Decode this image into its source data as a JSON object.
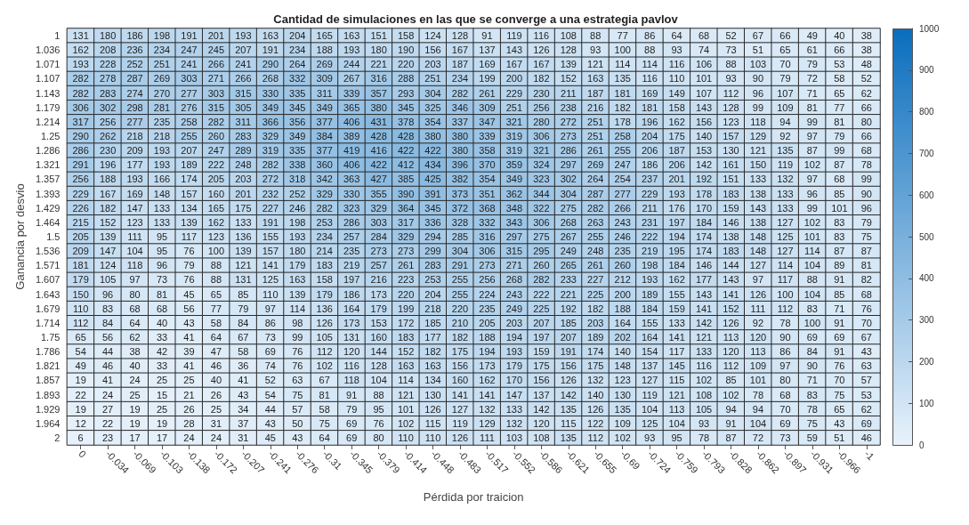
{
  "chart_data": {
    "type": "heatmap",
    "title": "Cantidad de simulaciones en las que se converge a una estrategia pavlov",
    "xlabel": "Pérdida por traicion",
    "ylabel": "Ganancia por desvio",
    "categories": [
      "0",
      "-0.034",
      "-0.069",
      "-0.103",
      "-0.138",
      "-0.172",
      "-0.207",
      "-0.241",
      "-0.276",
      "-0.31",
      "-0.345",
      "-0.379",
      "-0.414",
      "-0.448",
      "-0.483",
      "-0.517",
      "-0.552",
      "-0.586",
      "-0.621",
      "-0.655",
      "-0.69",
      "-0.724",
      "-0.759",
      "-0.793",
      "-0.828",
      "-0.862",
      "-0.897",
      "-0.931",
      "-0.966",
      "-1"
    ],
    "y_categories": [
      "1",
      "1.036",
      "1.071",
      "1.107",
      "1.143",
      "1.179",
      "1.214",
      "1.25",
      "1.286",
      "1.321",
      "1.357",
      "1.393",
      "1.429",
      "1.464",
      "1.5",
      "1.536",
      "1.571",
      "1.607",
      "1.643",
      "1.679",
      "1.714",
      "1.75",
      "1.786",
      "1.821",
      "1.857",
      "1.893",
      "1.929",
      "1.964",
      "2"
    ],
    "cells": [
      [
        131,
        180,
        186,
        198,
        191,
        201,
        193,
        163,
        204,
        165,
        163,
        151,
        158,
        124,
        128,
        91,
        119,
        116,
        108,
        88,
        77,
        86,
        64,
        68,
        52,
        67,
        66,
        49,
        40,
        38
      ],
      [
        162,
        208,
        236,
        234,
        247,
        245,
        207,
        191,
        234,
        188,
        193,
        180,
        190,
        156,
        167,
        137,
        143,
        126,
        128,
        93,
        100,
        88,
        93,
        74,
        73,
        51,
        65,
        61,
        66,
        38
      ],
      [
        193,
        228,
        252,
        251,
        241,
        266,
        241,
        290,
        264,
        269,
        244,
        221,
        220,
        203,
        187,
        169,
        167,
        167,
        139,
        121,
        114,
        114,
        116,
        106,
        88,
        103,
        70,
        79,
        53,
        48
      ],
      [
        282,
        278,
        287,
        269,
        303,
        271,
        266,
        268,
        332,
        309,
        267,
        316,
        288,
        251,
        234,
        199,
        200,
        182,
        152,
        163,
        135,
        116,
        110,
        101,
        93,
        90,
        79,
        72,
        58,
        52
      ],
      [
        282,
        283,
        274,
        270,
        277,
        303,
        315,
        330,
        335,
        311,
        339,
        357,
        293,
        304,
        282,
        261,
        229,
        230,
        211,
        187,
        181,
        169,
        149,
        107,
        112,
        96,
        107,
        71,
        65,
        62
      ],
      [
        306,
        302,
        298,
        281,
        276,
        315,
        305,
        349,
        345,
        349,
        365,
        380,
        345,
        325,
        346,
        309,
        251,
        256,
        238,
        216,
        182,
        181,
        158,
        143,
        128,
        99,
        109,
        81,
        77,
        66
      ],
      [
        317,
        256,
        277,
        235,
        258,
        282,
        311,
        366,
        356,
        377,
        406,
        431,
        378,
        354,
        337,
        347,
        321,
        280,
        272,
        251,
        178,
        196,
        162,
        156,
        123,
        118,
        94,
        99,
        81,
        80
      ],
      [
        290,
        262,
        218,
        218,
        255,
        260,
        283,
        329,
        349,
        384,
        389,
        428,
        428,
        380,
        380,
        339,
        319,
        306,
        273,
        251,
        258,
        204,
        175,
        140,
        157,
        129,
        92,
        97,
        79,
        66
      ],
      [
        286,
        230,
        209,
        193,
        207,
        247,
        289,
        319,
        335,
        377,
        419,
        416,
        422,
        422,
        380,
        358,
        319,
        321,
        286,
        261,
        255,
        206,
        187,
        153,
        130,
        121,
        135,
        87,
        99,
        68
      ],
      [
        291,
        196,
        177,
        193,
        189,
        222,
        248,
        282,
        338,
        360,
        406,
        422,
        412,
        434,
        396,
        370,
        359,
        324,
        297,
        269,
        247,
        186,
        206,
        142,
        161,
        150,
        119,
        102,
        87,
        78
      ],
      [
        256,
        188,
        193,
        166,
        174,
        205,
        203,
        272,
        318,
        342,
        363,
        427,
        385,
        425,
        382,
        354,
        349,
        323,
        302,
        264,
        254,
        237,
        201,
        192,
        151,
        133,
        132,
        97,
        68,
        99
      ],
      [
        229,
        167,
        169,
        148,
        157,
        160,
        201,
        232,
        252,
        329,
        330,
        355,
        390,
        391,
        373,
        351,
        362,
        344,
        304,
        287,
        277,
        229,
        193,
        178,
        183,
        138,
        133,
        96,
        85,
        90
      ],
      [
        226,
        182,
        147,
        133,
        134,
        165,
        175,
        227,
        246,
        282,
        323,
        329,
        364,
        345,
        372,
        368,
        348,
        322,
        275,
        282,
        266,
        211,
        176,
        170,
        159,
        143,
        133,
        99,
        101,
        96
      ],
      [
        215,
        152,
        123,
        133,
        139,
        162,
        133,
        191,
        198,
        253,
        286,
        303,
        317,
        336,
        328,
        332,
        343,
        306,
        268,
        263,
        243,
        231,
        197,
        184,
        146,
        138,
        127,
        102,
        83,
        79
      ],
      [
        205,
        139,
        111,
        95,
        117,
        123,
        136,
        155,
        193,
        234,
        257,
        284,
        329,
        294,
        285,
        316,
        297,
        275,
        267,
        255,
        246,
        222,
        194,
        174,
        138,
        148,
        125,
        101,
        83,
        75
      ],
      [
        209,
        147,
        104,
        95,
        76,
        100,
        139,
        157,
        180,
        214,
        235,
        273,
        273,
        299,
        304,
        306,
        315,
        295,
        249,
        248,
        235,
        219,
        195,
        174,
        183,
        148,
        127,
        114,
        87,
        87
      ],
      [
        181,
        124,
        118,
        96,
        79,
        88,
        121,
        141,
        179,
        183,
        219,
        257,
        261,
        283,
        291,
        273,
        271,
        260,
        265,
        261,
        260,
        198,
        184,
        146,
        144,
        127,
        114,
        104,
        89,
        81
      ],
      [
        179,
        105,
        97,
        73,
        76,
        88,
        131,
        125,
        163,
        158,
        197,
        216,
        223,
        253,
        255,
        256,
        268,
        282,
        233,
        227,
        212,
        193,
        162,
        177,
        143,
        97,
        117,
        88,
        91,
        82
      ],
      [
        150,
        96,
        80,
        81,
        45,
        65,
        85,
        110,
        139,
        179,
        186,
        173,
        220,
        204,
        255,
        224,
        243,
        222,
        221,
        225,
        200,
        189,
        155,
        143,
        141,
        126,
        100,
        104,
        85,
        68
      ],
      [
        110,
        83,
        68,
        68,
        56,
        77,
        79,
        97,
        114,
        136,
        164,
        179,
        199,
        218,
        220,
        235,
        249,
        225,
        192,
        182,
        188,
        184,
        159,
        141,
        152,
        111,
        112,
        83,
        71,
        76
      ],
      [
        112,
        84,
        64,
        40,
        43,
        58,
        84,
        86,
        98,
        126,
        173,
        153,
        172,
        185,
        210,
        205,
        203,
        207,
        185,
        203,
        164,
        155,
        133,
        142,
        126,
        92,
        78,
        100,
        91,
        70
      ],
      [
        65,
        56,
        62,
        33,
        41,
        64,
        67,
        73,
        99,
        105,
        131,
        160,
        183,
        177,
        182,
        188,
        194,
        197,
        207,
        189,
        202,
        164,
        141,
        121,
        113,
        120,
        90,
        69,
        69,
        67
      ],
      [
        54,
        44,
        38,
        42,
        39,
        47,
        58,
        69,
        76,
        112,
        120,
        144,
        152,
        182,
        175,
        194,
        193,
        159,
        191,
        174,
        140,
        154,
        117,
        133,
        120,
        113,
        86,
        84,
        91,
        43
      ],
      [
        49,
        46,
        40,
        33,
        41,
        46,
        36,
        74,
        76,
        102,
        116,
        128,
        163,
        163,
        156,
        173,
        179,
        175,
        156,
        175,
        148,
        137,
        145,
        116,
        112,
        109,
        97,
        90,
        76,
        63
      ],
      [
        19,
        41,
        24,
        25,
        25,
        40,
        41,
        52,
        63,
        67,
        118,
        104,
        114,
        134,
        160,
        162,
        170,
        156,
        126,
        132,
        123,
        127,
        115,
        102,
        85,
        101,
        80,
        71,
        70,
        57
      ],
      [
        22,
        24,
        25,
        15,
        21,
        26,
        43,
        54,
        75,
        81,
        91,
        88,
        121,
        130,
        141,
        141,
        147,
        137,
        142,
        140,
        130,
        119,
        121,
        108,
        102,
        78,
        68,
        83,
        75,
        53
      ],
      [
        19,
        27,
        19,
        25,
        26,
        25,
        34,
        44,
        57,
        58,
        79,
        95,
        101,
        126,
        127,
        132,
        133,
        142,
        135,
        126,
        135,
        104,
        113,
        105,
        94,
        94,
        70,
        78,
        65,
        62
      ],
      [
        12,
        22,
        19,
        19,
        28,
        31,
        37,
        43,
        50,
        75,
        69,
        76,
        102,
        115,
        119,
        129,
        132,
        120,
        115,
        122,
        109,
        125,
        104,
        93,
        91,
        104,
        69,
        75,
        43,
        69
      ],
      [
        6,
        23,
        17,
        17,
        24,
        24,
        31,
        45,
        43,
        64,
        69,
        80,
        110,
        110,
        126,
        111,
        103,
        108,
        135,
        112,
        102,
        93,
        95,
        78,
        87,
        72,
        73,
        59,
        51,
        46
      ]
    ],
    "data_labels": true,
    "colors": [
      "#e8f2fb",
      "#0a6ebd"
    ],
    "clim": [
      0,
      1000
    ],
    "cticks": [
      0,
      100,
      200,
      300,
      400,
      500,
      600,
      700,
      800,
      900,
      1000
    ]
  }
}
